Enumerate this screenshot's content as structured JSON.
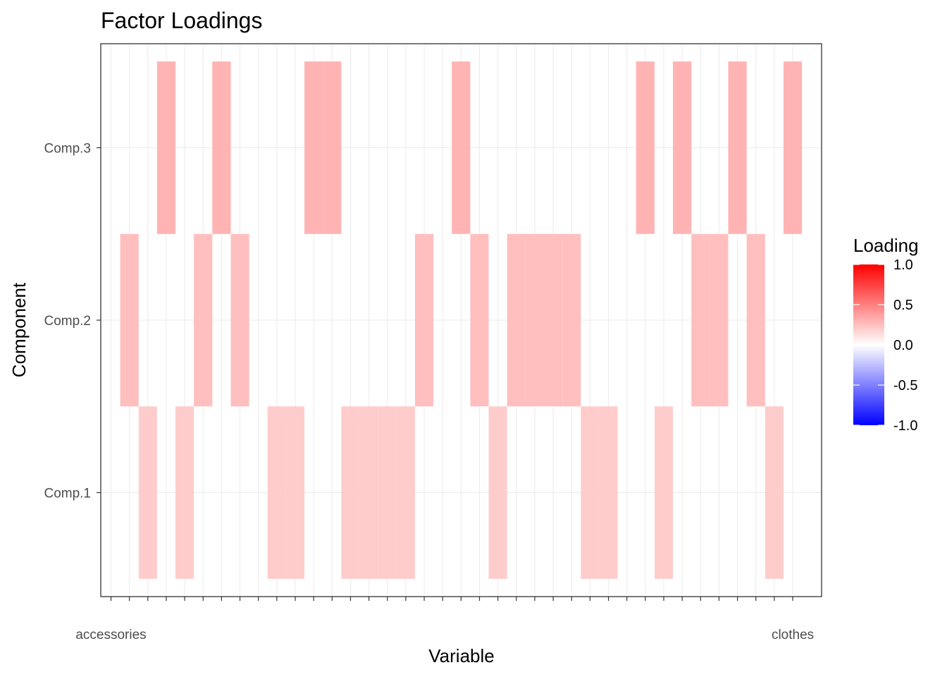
{
  "chart_data": {
    "type": "heatmap",
    "title": "Factor Loadings",
    "xlabel": "Variable",
    "ylabel": "Component",
    "y_categories": [
      "Comp.1",
      "Comp.2",
      "Comp.3"
    ],
    "x_tick_labels_visible": [
      "accessories",
      "clothes"
    ],
    "x_count": 38,
    "cells": [
      {
        "x": 2,
        "y": "Comp.2",
        "value": 0.25
      },
      {
        "x": 3,
        "y": "Comp.1",
        "value": 0.2
      },
      {
        "x": 4,
        "y": "Comp.3",
        "value": 0.3
      },
      {
        "x": 5,
        "y": "Comp.1",
        "value": 0.2
      },
      {
        "x": 6,
        "y": "Comp.2",
        "value": 0.25
      },
      {
        "x": 7,
        "y": "Comp.3",
        "value": 0.3
      },
      {
        "x": 8,
        "y": "Comp.2",
        "value": 0.25
      },
      {
        "x": 10,
        "y": "Comp.1",
        "value": 0.2
      },
      {
        "x": 11,
        "y": "Comp.1",
        "value": 0.2
      },
      {
        "x": 12,
        "y": "Comp.3",
        "value": 0.3
      },
      {
        "x": 13,
        "y": "Comp.3",
        "value": 0.3
      },
      {
        "x": 14,
        "y": "Comp.1",
        "value": 0.2
      },
      {
        "x": 15,
        "y": "Comp.1",
        "value": 0.2
      },
      {
        "x": 16,
        "y": "Comp.1",
        "value": 0.2
      },
      {
        "x": 17,
        "y": "Comp.1",
        "value": 0.2
      },
      {
        "x": 18,
        "y": "Comp.2",
        "value": 0.25
      },
      {
        "x": 20,
        "y": "Comp.3",
        "value": 0.3
      },
      {
        "x": 21,
        "y": "Comp.2",
        "value": 0.25
      },
      {
        "x": 22,
        "y": "Comp.1",
        "value": 0.2
      },
      {
        "x": 23,
        "y": "Comp.2",
        "value": 0.25
      },
      {
        "x": 24,
        "y": "Comp.2",
        "value": 0.25
      },
      {
        "x": 25,
        "y": "Comp.2",
        "value": 0.25
      },
      {
        "x": 26,
        "y": "Comp.2",
        "value": 0.25
      },
      {
        "x": 27,
        "y": "Comp.1",
        "value": 0.2
      },
      {
        "x": 28,
        "y": "Comp.1",
        "value": 0.2
      },
      {
        "x": 30,
        "y": "Comp.3",
        "value": 0.3
      },
      {
        "x": 31,
        "y": "Comp.1",
        "value": 0.2
      },
      {
        "x": 32,
        "y": "Comp.3",
        "value": 0.3
      },
      {
        "x": 33,
        "y": "Comp.2",
        "value": 0.25
      },
      {
        "x": 34,
        "y": "Comp.2",
        "value": 0.25
      },
      {
        "x": 35,
        "y": "Comp.3",
        "value": 0.3
      },
      {
        "x": 36,
        "y": "Comp.2",
        "value": 0.25
      },
      {
        "x": 37,
        "y": "Comp.1",
        "value": 0.2
      },
      {
        "x": 38,
        "y": "Comp.3",
        "value": 0.3
      }
    ],
    "legend": {
      "title": "Loading",
      "position": "right",
      "ticks": [
        "1.0",
        "0.5",
        "0.0",
        "-0.5",
        "-1.0"
      ],
      "range": [
        -1,
        1
      ],
      "low_color": "#0000ff",
      "mid_color": "#ffffff",
      "high_color": "#ff0000"
    },
    "grid": true
  }
}
